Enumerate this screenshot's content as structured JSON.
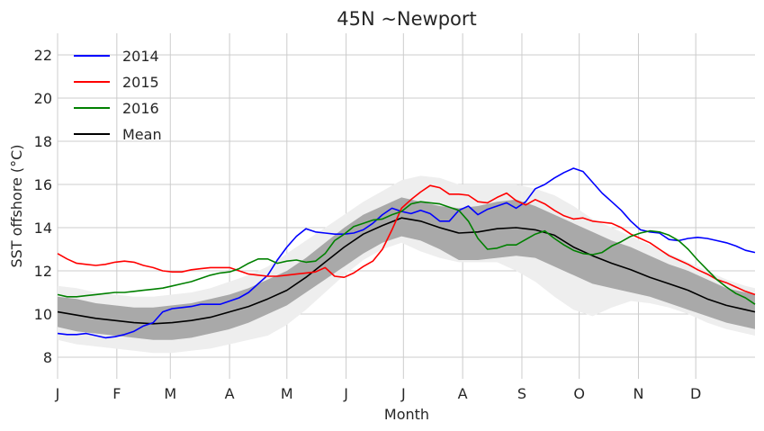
{
  "chart_data": {
    "type": "line",
    "title": "45N ~Newport",
    "xlabel": "Month",
    "ylabel": "SST offshore (°C)",
    "xlim": [
      0,
      365
    ],
    "ylim": [
      7,
      23
    ],
    "yticks": [
      8,
      10,
      12,
      14,
      16,
      18,
      20,
      22
    ],
    "xticks": [
      {
        "day": 0,
        "label": "J"
      },
      {
        "day": 31,
        "label": "F"
      },
      {
        "day": 59,
        "label": "M"
      },
      {
        "day": 90,
        "label": "A"
      },
      {
        "day": 120,
        "label": "M"
      },
      {
        "day": 151,
        "label": "J"
      },
      {
        "day": 181,
        "label": "J"
      },
      {
        "day": 212,
        "label": "A"
      },
      {
        "day": 243,
        "label": "S"
      },
      {
        "day": 273,
        "label": "O"
      },
      {
        "day": 304,
        "label": "N"
      },
      {
        "day": 334,
        "label": "D"
      }
    ],
    "grid": true,
    "legend_position": "top-left",
    "series": [
      {
        "name": "2014",
        "color": "#0000ff",
        "x": [
          0,
          5,
          10,
          15,
          20,
          25,
          30,
          35,
          40,
          45,
          50,
          55,
          60,
          65,
          70,
          75,
          80,
          85,
          90,
          95,
          100,
          105,
          110,
          115,
          120,
          125,
          130,
          135,
          140,
          145,
          150,
          155,
          160,
          165,
          170,
          175,
          180,
          185,
          190,
          195,
          200,
          205,
          210,
          215,
          220,
          225,
          230,
          235,
          240,
          245,
          250,
          255,
          260,
          265,
          270,
          275,
          280,
          285,
          290,
          295,
          300,
          305,
          310,
          315,
          320,
          325,
          330,
          335,
          340,
          345,
          350,
          355,
          360,
          365
        ],
        "y": [
          9.1,
          9.05,
          9.05,
          9.1,
          9.0,
          8.9,
          8.95,
          9.05,
          9.2,
          9.45,
          9.6,
          10.1,
          10.25,
          10.3,
          10.35,
          10.45,
          10.45,
          10.45,
          10.6,
          10.75,
          11.0,
          11.4,
          11.8,
          12.5,
          13.1,
          13.6,
          13.95,
          13.8,
          13.75,
          13.7,
          13.7,
          13.75,
          13.9,
          14.2,
          14.6,
          14.9,
          14.75,
          14.65,
          14.8,
          14.65,
          14.3,
          14.3,
          14.8,
          15.0,
          14.6,
          14.85,
          15.0,
          15.15,
          14.9,
          15.2,
          15.8,
          16.0,
          16.3,
          16.55,
          16.75,
          16.6,
          16.1,
          15.6,
          15.2,
          14.8,
          14.3,
          13.9,
          13.8,
          13.75,
          13.45,
          13.4,
          13.5,
          13.55,
          13.5,
          13.4,
          13.3,
          13.15,
          12.95,
          12.85
        ]
      },
      {
        "name": "2015",
        "color": "#ff0000",
        "x": [
          0,
          5,
          10,
          15,
          20,
          25,
          30,
          35,
          40,
          45,
          50,
          55,
          60,
          65,
          70,
          75,
          80,
          85,
          90,
          95,
          100,
          105,
          110,
          115,
          120,
          125,
          130,
          135,
          140,
          145,
          150,
          155,
          160,
          165,
          170,
          175,
          180,
          185,
          190,
          195,
          200,
          205,
          210,
          215,
          220,
          225,
          230,
          235,
          240,
          245,
          250,
          255,
          260,
          265,
          270,
          275,
          280,
          285,
          290,
          295,
          300,
          305,
          310,
          315,
          320,
          325,
          330,
          335,
          340,
          345,
          350,
          355,
          360,
          365
        ],
        "y": [
          12.8,
          12.55,
          12.35,
          12.3,
          12.25,
          12.3,
          12.4,
          12.45,
          12.4,
          12.25,
          12.15,
          12.0,
          11.95,
          11.95,
          12.05,
          12.1,
          12.15,
          12.15,
          12.15,
          12.0,
          11.85,
          11.8,
          11.75,
          11.75,
          11.8,
          11.85,
          11.9,
          11.95,
          12.15,
          11.75,
          11.7,
          11.9,
          12.2,
          12.45,
          13.0,
          13.9,
          14.9,
          15.3,
          15.65,
          15.95,
          15.85,
          15.55,
          15.55,
          15.5,
          15.2,
          15.15,
          15.4,
          15.6,
          15.25,
          15.05,
          15.3,
          15.1,
          14.8,
          14.55,
          14.4,
          14.45,
          14.3,
          14.25,
          14.2,
          14.0,
          13.7,
          13.5,
          13.3,
          13.0,
          12.7,
          12.5,
          12.3,
          12.05,
          11.85,
          11.6,
          11.45,
          11.25,
          11.05,
          10.9
        ]
      },
      {
        "name": "2016",
        "color": "#008000",
        "x": [
          0,
          5,
          10,
          15,
          20,
          25,
          30,
          35,
          40,
          45,
          50,
          55,
          60,
          65,
          70,
          75,
          80,
          85,
          90,
          95,
          100,
          105,
          110,
          115,
          120,
          125,
          130,
          135,
          140,
          145,
          150,
          155,
          160,
          165,
          170,
          175,
          180,
          185,
          190,
          195,
          200,
          205,
          210,
          215,
          220,
          225,
          230,
          235,
          240,
          245,
          250,
          255,
          260,
          265,
          270,
          275,
          280,
          285,
          290,
          295,
          300,
          305,
          310,
          315,
          320,
          325,
          330,
          335,
          340,
          345,
          350,
          355,
          360,
          365
        ],
        "y": [
          10.9,
          10.8,
          10.8,
          10.85,
          10.9,
          10.95,
          11.0,
          11.0,
          11.05,
          11.1,
          11.15,
          11.2,
          11.3,
          11.4,
          11.5,
          11.65,
          11.8,
          11.9,
          11.95,
          12.1,
          12.35,
          12.55,
          12.55,
          12.35,
          12.45,
          12.5,
          12.4,
          12.45,
          12.8,
          13.4,
          13.7,
          14.05,
          14.2,
          14.35,
          14.4,
          14.6,
          14.75,
          15.1,
          15.2,
          15.15,
          15.1,
          14.95,
          14.8,
          14.3,
          13.5,
          13.0,
          13.05,
          13.2,
          13.2,
          13.45,
          13.7,
          13.85,
          13.5,
          13.2,
          12.95,
          12.8,
          12.75,
          12.85,
          13.15,
          13.35,
          13.6,
          13.75,
          13.85,
          13.8,
          13.65,
          13.4,
          13.0,
          12.5,
          12.05,
          11.6,
          11.25,
          10.95,
          10.75,
          10.45
        ]
      },
      {
        "name": "Mean",
        "color": "#000000",
        "x": [
          0,
          10,
          20,
          30,
          40,
          50,
          60,
          70,
          80,
          90,
          100,
          110,
          120,
          130,
          140,
          150,
          160,
          170,
          180,
          190,
          200,
          210,
          220,
          230,
          240,
          250,
          260,
          270,
          280,
          290,
          300,
          310,
          320,
          330,
          340,
          350,
          360,
          365
        ],
        "y": [
          10.1,
          9.95,
          9.8,
          9.7,
          9.6,
          9.55,
          9.6,
          9.7,
          9.85,
          10.1,
          10.35,
          10.7,
          11.1,
          11.7,
          12.4,
          13.1,
          13.7,
          14.1,
          14.45,
          14.3,
          14.0,
          13.75,
          13.8,
          13.95,
          14.0,
          13.9,
          13.65,
          13.1,
          12.7,
          12.35,
          12.05,
          11.7,
          11.4,
          11.1,
          10.7,
          10.4,
          10.2,
          10.1
        ]
      }
    ],
    "bands": [
      {
        "kind": "outer-envelope",
        "color": "#eeeeee",
        "x": [
          0,
          10,
          20,
          30,
          40,
          50,
          60,
          70,
          80,
          90,
          100,
          110,
          120,
          130,
          140,
          150,
          160,
          170,
          180,
          190,
          200,
          210,
          220,
          230,
          240,
          250,
          260,
          270,
          280,
          290,
          300,
          310,
          320,
          330,
          340,
          350,
          360,
          365
        ],
        "lower": [
          8.8,
          8.6,
          8.5,
          8.4,
          8.3,
          8.2,
          8.2,
          8.3,
          8.4,
          8.6,
          8.8,
          9.0,
          9.5,
          10.2,
          11.0,
          11.8,
          12.5,
          13.0,
          13.3,
          12.9,
          12.6,
          12.4,
          12.4,
          12.4,
          12.0,
          11.5,
          10.8,
          10.2,
          9.9,
          10.3,
          10.6,
          10.5,
          10.3,
          10.0,
          9.6,
          9.3,
          9.1,
          9.0
        ],
        "upper": [
          11.3,
          11.2,
          11.0,
          10.9,
          10.8,
          10.8,
          10.9,
          11.0,
          11.2,
          11.5,
          11.8,
          12.2,
          12.8,
          13.4,
          14.0,
          14.6,
          15.2,
          15.7,
          16.2,
          16.4,
          16.3,
          16.0,
          16.0,
          16.0,
          16.0,
          15.8,
          15.5,
          15.0,
          14.4,
          14.0,
          13.6,
          13.2,
          12.8,
          12.4,
          12.0,
          11.6,
          11.3,
          11.2
        ]
      },
      {
        "kind": "std-band",
        "color": "#a9a9a9",
        "x": [
          0,
          10,
          20,
          30,
          40,
          50,
          60,
          70,
          80,
          90,
          100,
          110,
          120,
          130,
          140,
          150,
          160,
          170,
          180,
          190,
          200,
          210,
          220,
          230,
          240,
          250,
          260,
          270,
          280,
          290,
          300,
          310,
          320,
          330,
          340,
          350,
          360,
          365
        ],
        "lower": [
          9.4,
          9.2,
          9.1,
          9.0,
          8.9,
          8.8,
          8.8,
          8.9,
          9.1,
          9.3,
          9.6,
          10.0,
          10.4,
          11.0,
          11.6,
          12.2,
          12.8,
          13.3,
          13.6,
          13.4,
          13.0,
          12.5,
          12.5,
          12.6,
          12.7,
          12.6,
          12.2,
          11.8,
          11.4,
          11.2,
          11.0,
          10.8,
          10.5,
          10.2,
          9.9,
          9.6,
          9.4,
          9.3
        ],
        "upper": [
          10.8,
          10.7,
          10.5,
          10.4,
          10.3,
          10.3,
          10.4,
          10.5,
          10.7,
          10.9,
          11.2,
          11.6,
          12.0,
          12.6,
          13.3,
          14.0,
          14.6,
          15.0,
          15.4,
          15.2,
          15.0,
          14.9,
          15.0,
          15.2,
          15.3,
          15.0,
          14.6,
          14.2,
          13.8,
          13.4,
          13.1,
          12.7,
          12.3,
          12.0,
          11.6,
          11.2,
          11.0,
          10.9
        ]
      }
    ]
  }
}
